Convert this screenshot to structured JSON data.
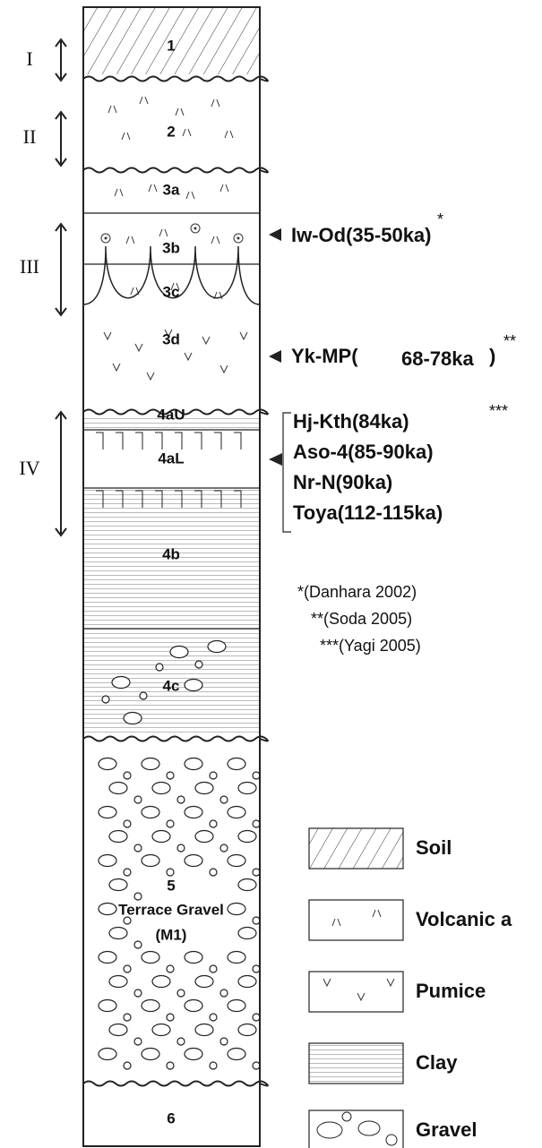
{
  "units": [
    "I",
    "II",
    "III",
    "IV"
  ],
  "layers": [
    "1",
    "2",
    "3a",
    "3b",
    "3c",
    "3d",
    "4aU",
    "4aL",
    "4b",
    "4c",
    "5",
    "6"
  ],
  "terrace": {
    "name": "Terrace Gravel",
    "code": "(M1)"
  },
  "tephra": [
    {
      "name": "Iw-Od(35-50ka)",
      "note": "*"
    },
    {
      "name": "Yk-MP(",
      "age": "68-78ka",
      "close": ")",
      "note": "**"
    }
  ],
  "tephra_group": {
    "items": [
      "Hj-Kth(84ka)",
      "Aso-4(85-90ka)",
      "Nr-N(90ka)",
      "Toya(112-115ka)"
    ],
    "note": "***"
  },
  "references": [
    "*(Danhara  2002)",
    "**(Soda 2005)",
    "***(Yagi 2005)"
  ],
  "legend": [
    "Soil",
    "Volcanic a",
    "Pumice",
    "Clay",
    "Gravel"
  ]
}
